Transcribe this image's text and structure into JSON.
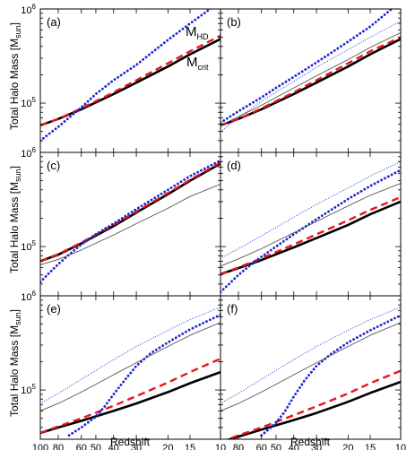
{
  "figure": {
    "ylabel": "Total Halo Mass [M",
    "ylabel_sub": "sun",
    "ylabel_close": "]",
    "xlabel": "Redshift",
    "annotations": {
      "mhd": "M",
      "mhd_sub": "HD",
      "mcrit": "M",
      "mcrit_sub": "crit"
    },
    "colors": {
      "black": "#000000",
      "red": "#e8141b",
      "blue": "#1a26d6",
      "thin": "#555555"
    }
  },
  "axes": {
    "x_ticks": [
      {
        "z": 100,
        "label": "100"
      },
      {
        "z": 80,
        "label": "80"
      },
      {
        "z": 60,
        "label": "60"
      },
      {
        "z": 50,
        "label": "50"
      },
      {
        "z": 40,
        "label": "40"
      },
      {
        "z": 30,
        "label": "30"
      },
      {
        "z": 20,
        "label": "20"
      },
      {
        "z": 15,
        "label": "15"
      },
      {
        "z": 10,
        "label": "10"
      }
    ],
    "y_major_labels": [
      "10",
      "10"
    ],
    "y_major_exps": [
      "6",
      "5"
    ]
  },
  "chart_data": [
    {
      "panel": "a",
      "label": "(a)",
      "type": "line",
      "x_scale": "log1p-reversed",
      "y_scale": "log",
      "xlabel": "",
      "ylabel": "Total Halo Mass [Msun]",
      "xlim": [
        100,
        10
      ],
      "ylim": [
        30000,
        1000000
      ],
      "series": [
        {
          "name": "Mcrit",
          "style": "thick-solid",
          "x": [
            100,
            80,
            60,
            40,
            30,
            20,
            15,
            10
          ],
          "y": [
            58000,
            68000,
            86000,
            125000,
            165000,
            245000,
            330000,
            480000
          ]
        },
        {
          "name": "",
          "style": "thick-dashed",
          "x": [
            100,
            80,
            60,
            40,
            30,
            20,
            15,
            10
          ],
          "y": [
            58000,
            68000,
            88000,
            130000,
            175000,
            265000,
            355000,
            520000
          ]
        },
        {
          "name": "MHD",
          "style": "thick-dotted",
          "x": [
            100,
            80,
            60,
            50,
            40,
            30,
            20,
            15,
            10
          ],
          "y": [
            40000,
            56000,
            90000,
            125000,
            175000,
            255000,
            470000,
            700000,
            1200000
          ]
        }
      ]
    },
    {
      "panel": "b",
      "label": "(b)",
      "type": "line",
      "x_scale": "log1p-reversed",
      "y_scale": "log",
      "xlim": [
        100,
        10
      ],
      "ylim": [
        30000,
        1000000
      ],
      "series": [
        {
          "name": "",
          "style": "thick-solid",
          "x": [
            100,
            80,
            60,
            40,
            30,
            20,
            15,
            10
          ],
          "y": [
            58000,
            68000,
            86000,
            125000,
            165000,
            245000,
            330000,
            480000
          ]
        },
        {
          "name": "",
          "style": "thick-dashed",
          "x": [
            100,
            80,
            60,
            40,
            30,
            20,
            15,
            10
          ],
          "y": [
            58000,
            68000,
            88000,
            130000,
            175000,
            265000,
            355000,
            500000
          ]
        },
        {
          "name": "",
          "style": "thick-dotted",
          "x": [
            100,
            80,
            60,
            50,
            40,
            30,
            20,
            15,
            10
          ],
          "y": [
            62000,
            82000,
            115000,
            145000,
            190000,
            270000,
            450000,
            650000,
            1200000
          ]
        },
        {
          "name": "",
          "style": "thin-solid",
          "x": [
            100,
            80,
            60,
            40,
            30,
            20,
            15,
            10
          ],
          "y": [
            58000,
            72000,
            95000,
            145000,
            195000,
            290000,
            390000,
            560000
          ]
        },
        {
          "name": "",
          "style": "thin-dotted",
          "x": [
            100,
            80,
            60,
            40,
            30,
            20,
            15,
            10
          ],
          "y": [
            50000,
            70000,
            105000,
            170000,
            240000,
            370000,
            500000,
            740000
          ]
        }
      ]
    },
    {
      "panel": "c",
      "label": "(c)",
      "type": "line",
      "x_scale": "log1p-reversed",
      "y_scale": "log",
      "xlim": [
        100,
        10
      ],
      "ylim": [
        30000,
        1000000
      ],
      "series": [
        {
          "name": "",
          "style": "thick-solid",
          "x": [
            100,
            80,
            60,
            40,
            30,
            20,
            15,
            10
          ],
          "y": [
            70000,
            82000,
            108000,
            165000,
            230000,
            360000,
            500000,
            760000
          ]
        },
        {
          "name": "",
          "style": "thick-dashed",
          "x": [
            100,
            80,
            60,
            40,
            30,
            20,
            15,
            10
          ],
          "y": [
            70000,
            83000,
            110000,
            170000,
            235000,
            370000,
            510000,
            780000
          ]
        },
        {
          "name": "",
          "style": "thick-dotted",
          "x": [
            100,
            90,
            80,
            70,
            60,
            50,
            40,
            30,
            20,
            15,
            10
          ],
          "y": [
            42000,
            52000,
            65000,
            82000,
            105000,
            135000,
            175000,
            250000,
            400000,
            560000,
            820000
          ]
        },
        {
          "name": "",
          "style": "thin-solid",
          "x": [
            100,
            80,
            60,
            40,
            30,
            20,
            15,
            10
          ],
          "y": [
            64000,
            73000,
            92000,
            133000,
            175000,
            255000,
            340000,
            460000
          ]
        }
      ]
    },
    {
      "panel": "d",
      "label": "(d)",
      "type": "line",
      "x_scale": "log1p-reversed",
      "y_scale": "log",
      "xlim": [
        100,
        10
      ],
      "ylim": [
        30000,
        1000000
      ],
      "series": [
        {
          "name": "",
          "style": "thick-solid",
          "x": [
            100,
            80,
            60,
            40,
            30,
            20,
            15,
            10
          ],
          "y": [
            51000,
            59000,
            72000,
            98000,
            123000,
            170000,
            220000,
            300000
          ]
        },
        {
          "name": "",
          "style": "thick-dashed",
          "x": [
            100,
            80,
            60,
            40,
            30,
            20,
            15,
            10
          ],
          "y": [
            51000,
            60000,
            75000,
            105000,
            135000,
            190000,
            245000,
            335000
          ]
        },
        {
          "name": "",
          "style": "thick-dotted",
          "x": [
            100,
            90,
            80,
            70,
            60,
            50,
            40,
            30,
            20,
            15,
            10
          ],
          "y": [
            33000,
            40000,
            50000,
            62000,
            78000,
            100000,
            135000,
            195000,
            320000,
            440000,
            650000
          ]
        },
        {
          "name": "",
          "style": "thin-solid",
          "x": [
            100,
            80,
            60,
            40,
            30,
            20,
            15,
            10
          ],
          "y": [
            62000,
            74000,
            95000,
            140000,
            185000,
            270000,
            350000,
            470000
          ]
        },
        {
          "name": "",
          "style": "thin-dotted",
          "x": [
            100,
            80,
            60,
            40,
            30,
            20,
            15,
            10
          ],
          "y": [
            75000,
            95000,
            130000,
            205000,
            280000,
            420000,
            560000,
            800000
          ]
        }
      ]
    },
    {
      "panel": "e",
      "label": "(e)",
      "type": "line",
      "x_scale": "log1p-reversed",
      "y_scale": "log",
      "xlim": [
        100,
        10
      ],
      "ylim": [
        30000,
        1000000
      ],
      "series": [
        {
          "name": "",
          "style": "thick-solid",
          "x": [
            100,
            80,
            60,
            40,
            30,
            20,
            15,
            10
          ],
          "y": [
            35000,
            40000,
            47000,
            60000,
            72000,
            95000,
            118000,
            155000
          ]
        },
        {
          "name": "",
          "style": "thick-dashed",
          "x": [
            100,
            80,
            60,
            40,
            30,
            20,
            15,
            10
          ],
          "y": [
            35000,
            41000,
            50000,
            68000,
            86000,
            120000,
            155000,
            215000
          ]
        },
        {
          "name": "",
          "style": "thick-dotted",
          "x": [
            70,
            60,
            50,
            45,
            40,
            35,
            30,
            25,
            20,
            15,
            10
          ],
          "y": [
            33000,
            40000,
            52000,
            66000,
            90000,
            125000,
            180000,
            245000,
            320000,
            440000,
            630000
          ]
        },
        {
          "name": "",
          "style": "thin-solid",
          "x": [
            100,
            80,
            60,
            40,
            30,
            20,
            15,
            10
          ],
          "y": [
            60000,
            72000,
            95000,
            145000,
            195000,
            290000,
            380000,
            520000
          ]
        },
        {
          "name": "",
          "style": "thin-dotted",
          "x": [
            100,
            80,
            60,
            40,
            30,
            20,
            15,
            10
          ],
          "y": [
            72000,
            92000,
            130000,
            210000,
            290000,
            430000,
            560000,
            760000
          ]
        }
      ]
    },
    {
      "panel": "f",
      "label": "(f)",
      "type": "line",
      "x_scale": "log1p-reversed",
      "y_scale": "log",
      "xlim": [
        100,
        10
      ],
      "ylim": [
        30000,
        1000000
      ],
      "series": [
        {
          "name": "",
          "style": "thick-solid",
          "x": [
            100,
            80,
            60,
            40,
            30,
            20,
            15,
            10
          ],
          "y": [
            28000,
            32000,
            38000,
            48000,
            57000,
            75000,
            93000,
            122000
          ]
        },
        {
          "name": "",
          "style": "thick-dashed",
          "x": [
            100,
            80,
            60,
            40,
            30,
            20,
            15,
            10
          ],
          "y": [
            28000,
            33000,
            40000,
            54000,
            67000,
            92000,
            118000,
            160000
          ]
        },
        {
          "name": "",
          "style": "thick-dotted",
          "x": [
            60,
            55,
            50,
            45,
            40,
            35,
            30,
            25,
            20,
            15,
            10
          ],
          "y": [
            33000,
            38000,
            45000,
            58000,
            85000,
            125000,
            180000,
            240000,
            320000,
            430000,
            620000
          ]
        },
        {
          "name": "",
          "style": "thin-solid",
          "x": [
            100,
            80,
            60,
            40,
            30,
            20,
            15,
            10
          ],
          "y": [
            60000,
            72000,
            95000,
            145000,
            195000,
            290000,
            380000,
            520000
          ]
        },
        {
          "name": "",
          "style": "thin-dotted",
          "x": [
            100,
            80,
            60,
            40,
            30,
            20,
            15,
            10
          ],
          "y": [
            72000,
            92000,
            130000,
            210000,
            290000,
            430000,
            560000,
            760000
          ]
        }
      ]
    }
  ]
}
